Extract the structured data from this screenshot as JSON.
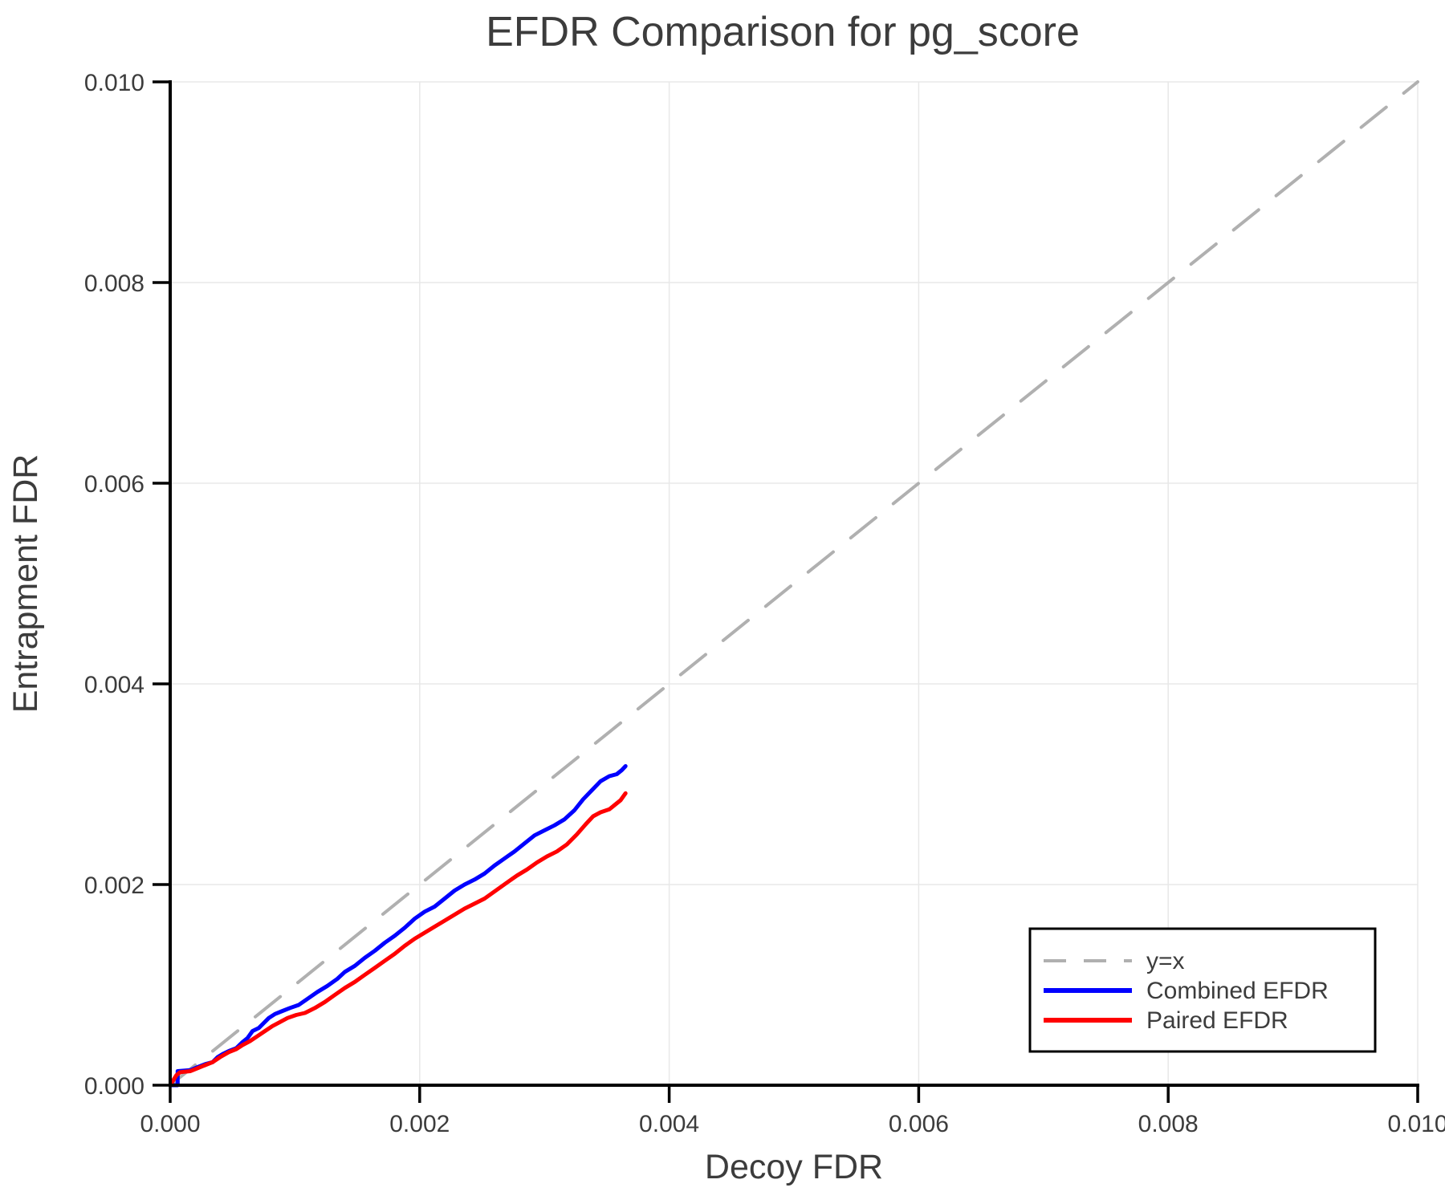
{
  "figure": {
    "background": "#ffffff",
    "text_color": "#3c3c3c",
    "axis_color": "#000000",
    "grid_color": "#e8e8e8"
  },
  "chart_data": {
    "type": "line",
    "title": "EFDR Comparison for pg_score",
    "xlabel": "Decoy FDR",
    "ylabel": "Entrapment FDR",
    "xlim": [
      0.0,
      0.01
    ],
    "ylim": [
      0.0,
      0.01
    ],
    "grid": true,
    "legend_position": "lower right",
    "xticks": {
      "values": [
        0.0,
        0.002,
        0.004,
        0.006,
        0.008,
        0.01
      ],
      "labels": [
        "0.000",
        "0.002",
        "0.004",
        "0.006",
        "0.008",
        "0.010"
      ]
    },
    "yticks": {
      "values": [
        0.0,
        0.002,
        0.004,
        0.006,
        0.008,
        0.01
      ],
      "labels": [
        "0.000",
        "0.002",
        "0.004",
        "0.006",
        "0.008",
        "0.010"
      ]
    },
    "series": [
      {
        "name": "y=x",
        "style": "dashed",
        "color": "#b0b0b0",
        "points": [
          [
            0.0,
            0.0
          ],
          [
            0.01,
            0.01
          ]
        ]
      },
      {
        "name": "Combined EFDR",
        "style": "solid",
        "color": "#0000ff",
        "points": [
          [
            0.0,
            0.0
          ],
          [
            6e-05,
            0.0
          ],
          [
            6e-05,
            0.00014
          ],
          [
            0.00016,
            0.00015
          ],
          [
            0.00022,
            0.00018
          ],
          [
            0.00028,
            0.00021
          ],
          [
            0.00034,
            0.00023
          ],
          [
            0.00038,
            0.00028
          ],
          [
            0.00042,
            0.00031
          ],
          [
            0.00047,
            0.00034
          ],
          [
            0.00053,
            0.00037
          ],
          [
            0.00058,
            0.00043
          ],
          [
            0.00062,
            0.00047
          ],
          [
            0.00066,
            0.00054
          ],
          [
            0.00071,
            0.00057
          ],
          [
            0.00075,
            0.00062
          ],
          [
            0.00079,
            0.00067
          ],
          [
            0.00084,
            0.00071
          ],
          [
            0.0009,
            0.00074
          ],
          [
            0.00096,
            0.00077
          ],
          [
            0.00103,
            0.0008
          ],
          [
            0.0011,
            0.00086
          ],
          [
            0.00118,
            0.00093
          ],
          [
            0.00126,
            0.00099
          ],
          [
            0.00134,
            0.00106
          ],
          [
            0.0014,
            0.00113
          ],
          [
            0.00148,
            0.00119
          ],
          [
            0.00156,
            0.00127
          ],
          [
            0.00164,
            0.00134
          ],
          [
            0.00172,
            0.00142
          ],
          [
            0.0018,
            0.00149
          ],
          [
            0.00188,
            0.00157
          ],
          [
            0.00196,
            0.00166
          ],
          [
            0.00204,
            0.00173
          ],
          [
            0.00212,
            0.00178
          ],
          [
            0.0022,
            0.00186
          ],
          [
            0.00228,
            0.00194
          ],
          [
            0.00236,
            0.002
          ],
          [
            0.00244,
            0.00205
          ],
          [
            0.00252,
            0.00211
          ],
          [
            0.0026,
            0.00219
          ],
          [
            0.00268,
            0.00226
          ],
          [
            0.00276,
            0.00233
          ],
          [
            0.00284,
            0.00241
          ],
          [
            0.00292,
            0.00249
          ],
          [
            0.003,
            0.00254
          ],
          [
            0.00308,
            0.00259
          ],
          [
            0.00316,
            0.00265
          ],
          [
            0.00324,
            0.00274
          ],
          [
            0.00331,
            0.00285
          ],
          [
            0.00338,
            0.00294
          ],
          [
            0.00345,
            0.00303
          ],
          [
            0.00352,
            0.00308
          ],
          [
            0.00358,
            0.0031
          ],
          [
            0.00362,
            0.00314
          ],
          [
            0.00365,
            0.00318
          ]
        ]
      },
      {
        "name": "Paired EFDR",
        "style": "solid",
        "color": "#ff0000",
        "points": [
          [
            0.0,
            0.0
          ],
          [
            5e-05,
            0.0001
          ],
          [
            8e-05,
            0.00013
          ],
          [
            0.00016,
            0.00014
          ],
          [
            0.00022,
            0.00017
          ],
          [
            0.00028,
            0.0002
          ],
          [
            0.00034,
            0.00023
          ],
          [
            0.0004,
            0.00028
          ],
          [
            0.00047,
            0.00033
          ],
          [
            0.00053,
            0.00036
          ],
          [
            0.00058,
            0.0004
          ],
          [
            0.00064,
            0.00044
          ],
          [
            0.0007,
            0.00049
          ],
          [
            0.00076,
            0.00054
          ],
          [
            0.00082,
            0.00059
          ],
          [
            0.00088,
            0.00063
          ],
          [
            0.00094,
            0.00067
          ],
          [
            0.00101,
            0.0007
          ],
          [
            0.00108,
            0.00072
          ],
          [
            0.00116,
            0.00077
          ],
          [
            0.00124,
            0.00083
          ],
          [
            0.00132,
            0.0009
          ],
          [
            0.0014,
            0.00097
          ],
          [
            0.00148,
            0.00103
          ],
          [
            0.00156,
            0.0011
          ],
          [
            0.00164,
            0.00117
          ],
          [
            0.00172,
            0.00124
          ],
          [
            0.0018,
            0.00131
          ],
          [
            0.00188,
            0.00139
          ],
          [
            0.00196,
            0.00146
          ],
          [
            0.00204,
            0.00152
          ],
          [
            0.00212,
            0.00158
          ],
          [
            0.0022,
            0.00164
          ],
          [
            0.00228,
            0.0017
          ],
          [
            0.00236,
            0.00176
          ],
          [
            0.00244,
            0.00181
          ],
          [
            0.00252,
            0.00186
          ],
          [
            0.00261,
            0.00194
          ],
          [
            0.0027,
            0.00202
          ],
          [
            0.00278,
            0.00209
          ],
          [
            0.00286,
            0.00215
          ],
          [
            0.00294,
            0.00222
          ],
          [
            0.00302,
            0.00228
          ],
          [
            0.0031,
            0.00233
          ],
          [
            0.00318,
            0.0024
          ],
          [
            0.00326,
            0.0025
          ],
          [
            0.00333,
            0.0026
          ],
          [
            0.00339,
            0.00268
          ],
          [
            0.00345,
            0.00272
          ],
          [
            0.00352,
            0.00275
          ],
          [
            0.00357,
            0.0028
          ],
          [
            0.00361,
            0.00284
          ],
          [
            0.00365,
            0.00291
          ]
        ]
      }
    ]
  }
}
